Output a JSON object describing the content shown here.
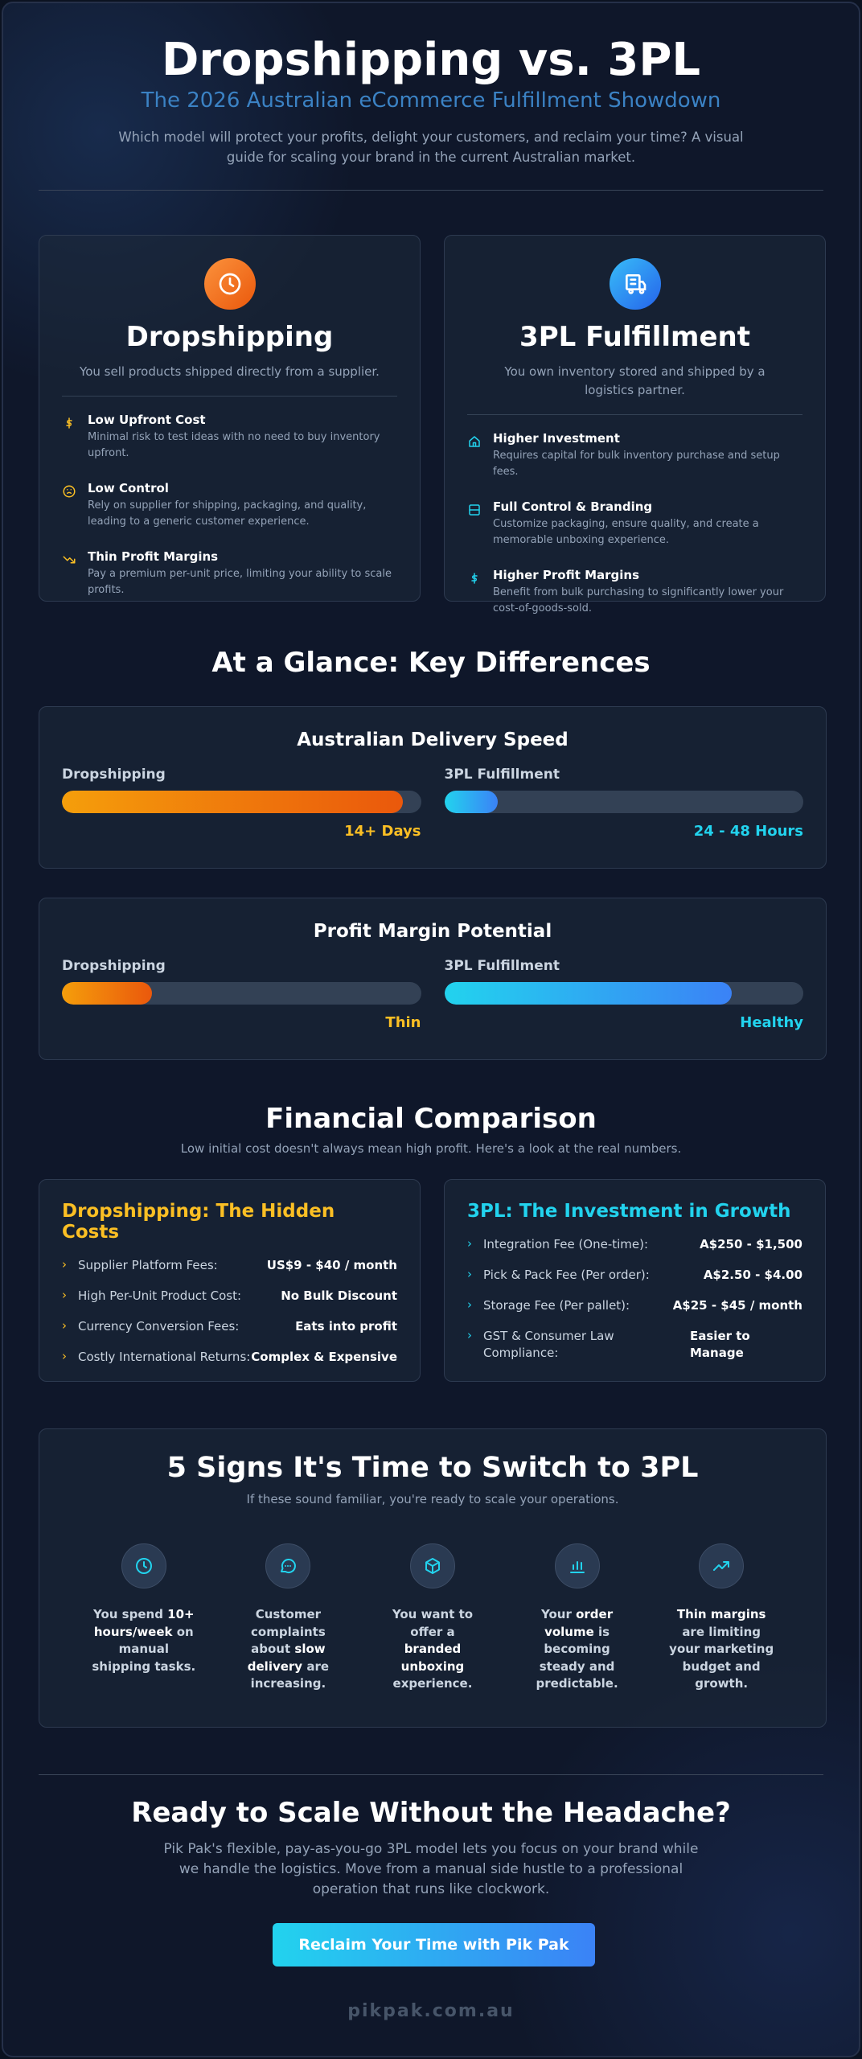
{
  "header": {
    "title": "Dropshipping vs. 3PL",
    "subtitle": "The 2026 Australian eCommerce Fulfillment Showdown",
    "intro": "Which model will protect your profits, delight your customers, and reclaim your time? A visual guide for scaling your brand in the current Australian market."
  },
  "cards": [
    {
      "title": "Dropshipping",
      "description": "You sell products shipped directly from a supplier.",
      "items": [
        {
          "title": "Low Upfront Cost",
          "text": "Minimal risk to test ideas with no need to buy inventory upfront."
        },
        {
          "title": "Low Control",
          "text": "Rely on supplier for shipping, packaging, and quality, leading to a generic customer experience."
        },
        {
          "title": "Thin Profit Margins",
          "text": "Pay a premium per-unit price, limiting your ability to scale profits."
        }
      ]
    },
    {
      "title": "3PL Fulfillment",
      "description": "You own inventory stored and shipped by a logistics partner.",
      "items": [
        {
          "title": "Higher Investment",
          "text": "Requires capital for bulk inventory purchase and setup fees."
        },
        {
          "title": "Full Control & Branding",
          "text": "Customize packaging, ensure quality, and create a memorable unboxing experience."
        },
        {
          "title": "Higher Profit Margins",
          "text": "Benefit from bulk purchasing to significantly lower your cost-of-goods-sold."
        }
      ]
    }
  ],
  "glance": {
    "title": "At a Glance: Key Differences",
    "panels": [
      {
        "title": "Australian Delivery Speed",
        "left_label": "Dropshipping",
        "left_value": "14+ Days",
        "right_label": "3PL Fulfillment",
        "right_value": "24 - 48 Hours"
      },
      {
        "title": "Profit Margin Potential",
        "left_label": "Dropshipping",
        "left_value": "Thin",
        "right_label": "3PL Fulfillment",
        "right_value": "Healthy"
      }
    ]
  },
  "financial": {
    "title": "Financial Comparison",
    "subtitle": "Low initial cost doesn't always mean high profit. Here's a look at the real numbers.",
    "columns": [
      {
        "title": "Dropshipping: The Hidden Costs",
        "rows": [
          [
            "Supplier Platform Fees:",
            "US$9 - $40 / month"
          ],
          [
            "High Per-Unit Product Cost:",
            "No Bulk Discount"
          ],
          [
            "Currency Conversion Fees:",
            "Eats into profit"
          ],
          [
            "Costly International Returns:",
            "Complex & Expensive"
          ]
        ]
      },
      {
        "title": "3PL: The Investment in Growth",
        "rows": [
          [
            "Integration Fee (One-time):",
            "A$250 - $1,500"
          ],
          [
            "Pick & Pack Fee (Per order):",
            "A$2.50 - $4.00"
          ],
          [
            "Storage Fee (Per pallet):",
            "A$25 - $45 / month"
          ],
          [
            "GST & Consumer Law Compliance:",
            "Easier to Manage"
          ]
        ]
      }
    ]
  },
  "signs": {
    "title": "5 Signs It's Time to Switch to 3PL",
    "subtitle": "If these sound familiar, you're ready to scale your operations.",
    "items": [
      [
        {
          "text": "You spend "
        },
        {
          "text": "10+ hours/week",
          "strong": true
        },
        {
          "text": " on manual shipping tasks."
        }
      ],
      [
        {
          "text": "Customer complaints about "
        },
        {
          "text": "slow delivery",
          "strong": true
        },
        {
          "text": " are increasing."
        }
      ],
      [
        {
          "text": "You want to offer a "
        },
        {
          "text": "branded unboxing",
          "strong": true
        },
        {
          "text": " experience."
        }
      ],
      [
        {
          "text": "Your "
        },
        {
          "text": "order volume",
          "strong": true
        },
        {
          "text": " is becoming steady and predictable."
        }
      ],
      [
        {
          "text": "Thin margins",
          "strong": true
        },
        {
          "text": " are limiting your marketing budget and growth."
        }
      ]
    ]
  },
  "cta": {
    "title": "Ready to Scale Without the Headache?",
    "text": "Pik Pak's flexible, pay-as-you-go 3PL model lets you focus on your brand while we handle the logistics. Move from a manual side hustle to a professional operation that runs like clockwork.",
    "button": "Reclaim Your Time with Pik Pak"
  },
  "footer": "pikpak.com.au"
}
